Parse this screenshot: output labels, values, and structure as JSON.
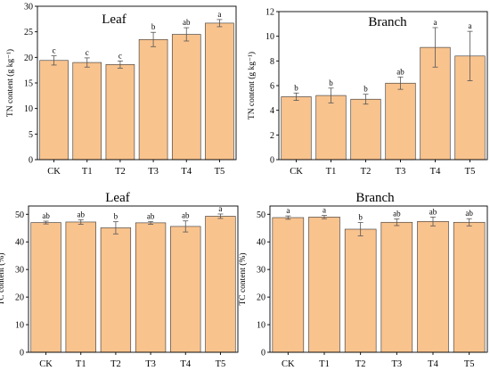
{
  "chart_data": [
    {
      "type": "bar",
      "title": "Leaf",
      "ylabel": "TN content (g kg⁻¹)",
      "ylim": [
        0,
        30
      ],
      "yticks": [
        0,
        5,
        10,
        15,
        20,
        25,
        30
      ],
      "categories": [
        "CK",
        "T1",
        "T2",
        "T3",
        "T4",
        "T5"
      ],
      "values": [
        19.4,
        19.0,
        18.6,
        23.5,
        24.5,
        26.7
      ],
      "errors": [
        0.9,
        0.9,
        0.7,
        1.4,
        1.3,
        0.7
      ],
      "letters": [
        "c",
        "c",
        "c",
        "b",
        "ab",
        "a"
      ],
      "grid": false
    },
    {
      "type": "bar",
      "title": "Branch",
      "ylabel": "TN content (g kg⁻¹)",
      "ylim": [
        0,
        12
      ],
      "yticks": [
        0,
        2,
        4,
        6,
        8,
        10,
        12
      ],
      "categories": [
        "CK",
        "T1",
        "T2",
        "T3",
        "T4",
        "T5"
      ],
      "values": [
        5.1,
        5.2,
        4.9,
        6.2,
        9.1,
        8.4
      ],
      "errors": [
        0.3,
        0.6,
        0.4,
        0.5,
        1.6,
        2.0
      ],
      "letters": [
        "b",
        "b",
        "b",
        "ab",
        "a",
        "a"
      ],
      "grid": false
    },
    {
      "type": "bar",
      "title": "Leaf",
      "ylabel": "TC content (%)",
      "ylim": [
        0,
        53
      ],
      "yticks": [
        0,
        10,
        20,
        30,
        40,
        50
      ],
      "categories": [
        "CK",
        "T1",
        "T2",
        "T3",
        "T4",
        "T5"
      ],
      "values": [
        47.0,
        47.2,
        45.1,
        46.9,
        45.6,
        49.3
      ],
      "errors": [
        0.5,
        0.8,
        2.2,
        0.5,
        2.0,
        0.8
      ],
      "letters": [
        "ab",
        "ab",
        "b",
        "ab",
        "ab",
        "a"
      ],
      "grid": false
    },
    {
      "type": "bar",
      "title": "Branch",
      "ylabel": "TC content (%)",
      "ylim": [
        0,
        53
      ],
      "yticks": [
        0,
        10,
        20,
        30,
        40,
        50
      ],
      "categories": [
        "CK",
        "T1",
        "T2",
        "T3",
        "T4",
        "T5"
      ],
      "values": [
        48.8,
        49.0,
        44.6,
        47.1,
        47.4,
        47.1
      ],
      "errors": [
        0.6,
        0.6,
        2.4,
        1.2,
        1.6,
        1.3
      ],
      "letters": [
        "a",
        "a",
        "b",
        "ab",
        "ab",
        "ab"
      ],
      "grid": false
    }
  ],
  "colors": {
    "bar_fill": "#f9c38e",
    "bar_edge": "#333333",
    "error_bar": "#555555",
    "axis": "#000000"
  }
}
